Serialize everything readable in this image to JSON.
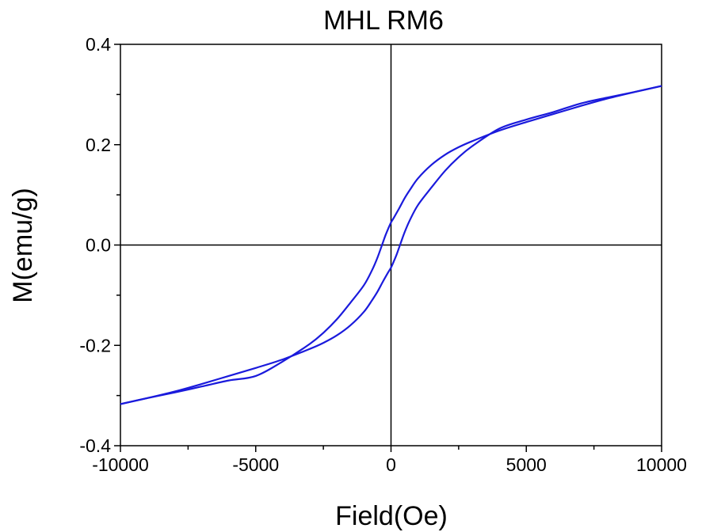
{
  "chart_data": {
    "type": "line",
    "title": "MHL RM6",
    "xlabel": "Field(Oe)",
    "ylabel": "M(emu/g)",
    "xlim": [
      -10000,
      10000
    ],
    "ylim": [
      -0.4,
      0.4
    ],
    "x_ticks": [
      -10000,
      -5000,
      0,
      5000,
      10000
    ],
    "x_tick_labels": [
      "-10000",
      "-5000",
      "0",
      "5000",
      "10000"
    ],
    "y_ticks": [
      -0.4,
      -0.2,
      0.0,
      0.2,
      0.4
    ],
    "y_tick_labels": [
      "-0.4",
      "-0.2",
      "0.0",
      "0.2",
      "0.4"
    ],
    "zero_lines": true,
    "grid": false,
    "legend": "none",
    "color": "#1a1adc",
    "series": [
      {
        "x": [
          10000,
          9000,
          8000,
          7000,
          6000,
          5000,
          4000,
          3000,
          2500,
          2000,
          1500,
          1000,
          700,
          500,
          300,
          100,
          0,
          -100,
          -200,
          -300,
          -500,
          -700,
          -1000,
          -1500,
          -2000,
          -2500,
          -3000,
          -4000,
          -5000,
          -6000,
          -7000,
          -8000,
          -9000,
          -10000
        ],
        "y": [
          0.317,
          0.305,
          0.292,
          0.277,
          0.261,
          0.245,
          0.228,
          0.207,
          0.195,
          0.18,
          0.16,
          0.133,
          0.11,
          0.093,
          0.073,
          0.054,
          0.045,
          0.033,
          0.02,
          0.005,
          -0.025,
          -0.05,
          -0.08,
          -0.115,
          -0.148,
          -0.175,
          -0.197,
          -0.232,
          -0.261,
          -0.27,
          -0.282,
          -0.294,
          -0.305,
          -0.317
        ]
      },
      {
        "x": [
          -10000,
          -9000,
          -8000,
          -7000,
          -6000,
          -5000,
          -4000,
          -3000,
          -2500,
          -2000,
          -1500,
          -1000,
          -700,
          -500,
          -300,
          -100,
          0,
          100,
          200,
          300,
          500,
          700,
          1000,
          1500,
          2000,
          2500,
          3000,
          4000,
          5000,
          6000,
          7000,
          8000,
          9000,
          10000
        ],
        "y": [
          -0.317,
          -0.305,
          -0.292,
          -0.277,
          -0.261,
          -0.245,
          -0.228,
          -0.207,
          -0.195,
          -0.18,
          -0.16,
          -0.133,
          -0.11,
          -0.093,
          -0.073,
          -0.054,
          -0.045,
          -0.033,
          -0.02,
          -0.005,
          0.025,
          0.05,
          0.08,
          0.115,
          0.148,
          0.175,
          0.197,
          0.232,
          0.25,
          0.265,
          0.282,
          0.294,
          0.305,
          0.317
        ]
      }
    ]
  }
}
